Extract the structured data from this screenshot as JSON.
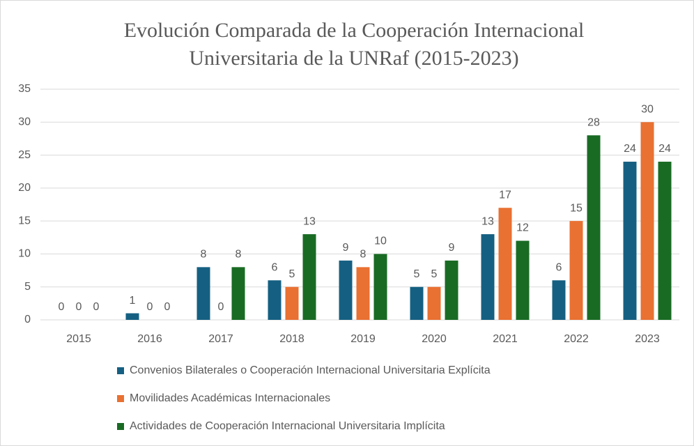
{
  "chart_data": {
    "type": "bar",
    "title": [
      "Evolución Comparada de la Cooperación Internacional",
      "Universitaria de la UNRaf (2015-2023)"
    ],
    "categories": [
      "2015",
      "2016",
      "2017",
      "2018",
      "2019",
      "2020",
      "2021",
      "2022",
      "2023"
    ],
    "series": [
      {
        "name": "Convenios Bilaterales o Cooperación Internacional Universitaria Explícita",
        "color": "#156082",
        "values": [
          0,
          1,
          8,
          6,
          9,
          5,
          13,
          6,
          24
        ]
      },
      {
        "name": "Movilidades Académicas Internacionales",
        "color": "#e97132",
        "values": [
          0,
          0,
          0,
          5,
          8,
          5,
          17,
          15,
          30
        ]
      },
      {
        "name": "Actividades de Cooperación Internacional Universitaria Implícita",
        "color": "#196b24",
        "values": [
          0,
          0,
          8,
          13,
          10,
          9,
          12,
          28,
          24
        ]
      }
    ],
    "ylim": [
      0,
      35
    ],
    "yticks": [
      0,
      5,
      10,
      15,
      20,
      25,
      30,
      35
    ],
    "grid": true,
    "legend": "bottom"
  }
}
